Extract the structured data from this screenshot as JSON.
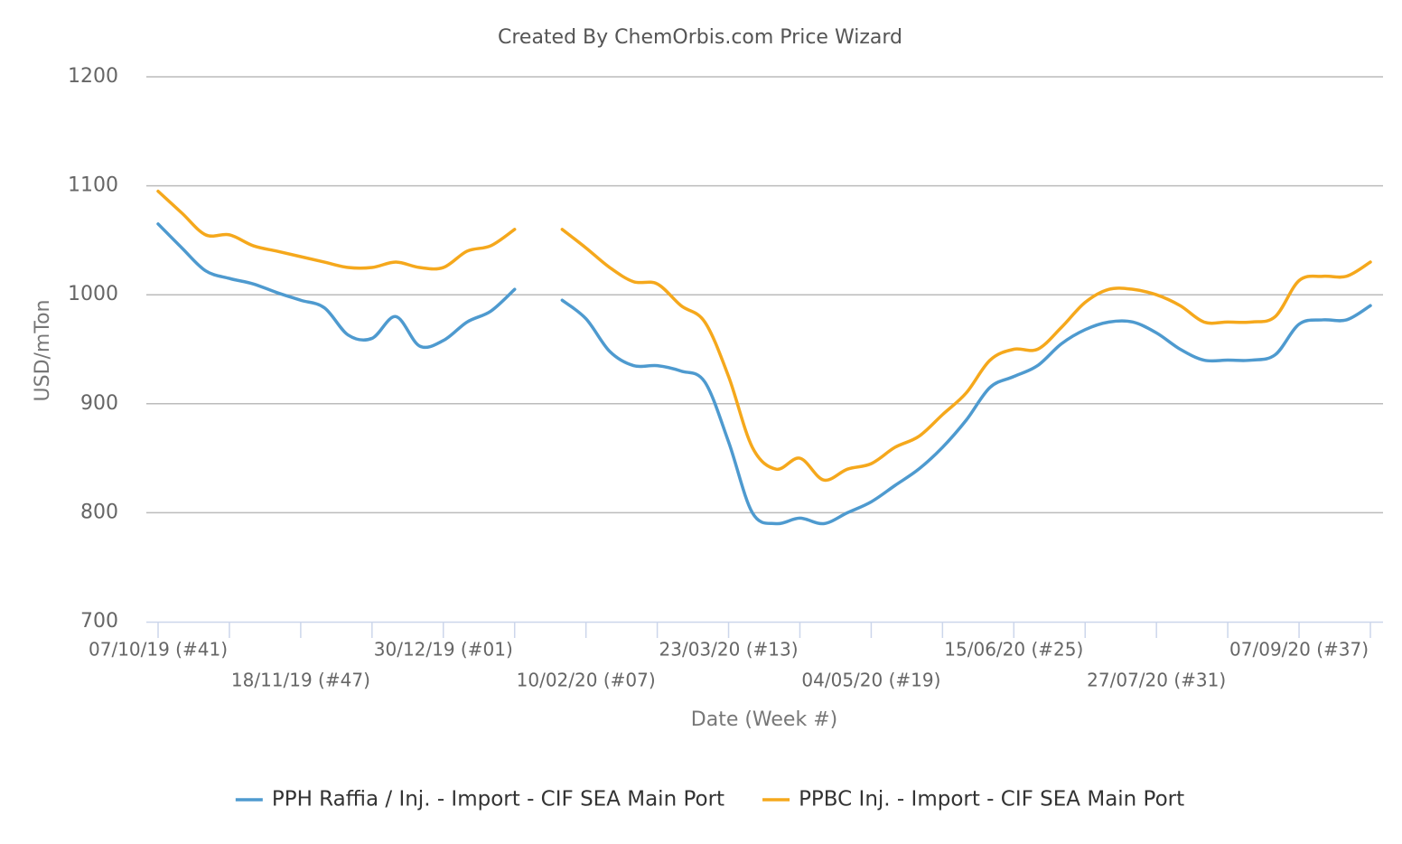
{
  "chart_data": {
    "type": "line",
    "title": "Created By ChemOrbis.com Price Wizard",
    "x_label": "Date (Week #)",
    "y_label": "USD/mTon",
    "categories": [
      "07/10/19 (#41)",
      null,
      null,
      null,
      null,
      null,
      "18/11/19 (#47)",
      null,
      null,
      null,
      null,
      null,
      "30/12/19 (#01)",
      null,
      null,
      null,
      null,
      null,
      "10/02/20 (#07)",
      null,
      null,
      null,
      null,
      null,
      "23/03/20 (#13)",
      null,
      null,
      null,
      null,
      null,
      "04/05/20 (#19)",
      null,
      null,
      null,
      null,
      null,
      "15/06/20 (#25)",
      null,
      null,
      null,
      null,
      null,
      "27/07/20 (#31)",
      null,
      null,
      null,
      null,
      null,
      "07/09/20 (#37)",
      null,
      null,
      null
    ],
    "series": [
      {
        "name": "PPH Raffia / Inj. - Import - CIF SEA Main Port",
        "color": "#4e9acf",
        "values": [
          1065,
          1043,
          1022,
          1015,
          1010,
          1002,
          995,
          988,
          963,
          960,
          980,
          953,
          958,
          975,
          985,
          1005,
          null,
          995,
          978,
          948,
          935,
          935,
          930,
          920,
          865,
          800,
          790,
          795,
          790,
          800,
          810,
          825,
          840,
          860,
          885,
          915,
          925,
          935,
          955,
          968,
          975,
          975,
          965,
          950,
          940,
          940,
          940,
          945,
          973,
          977,
          977,
          990
        ]
      },
      {
        "name": "PPBC Inj. - Import - CIF SEA Main Port",
        "color": "#f5a81c",
        "values": [
          1095,
          1075,
          1055,
          1055,
          1045,
          1040,
          1035,
          1030,
          1025,
          1025,
          1030,
          1025,
          1025,
          1040,
          1045,
          1060,
          null,
          1060,
          1043,
          1025,
          1012,
          1010,
          990,
          975,
          925,
          860,
          840,
          850,
          830,
          840,
          845,
          860,
          870,
          890,
          910,
          940,
          950,
          950,
          970,
          993,
          1005,
          1005,
          1000,
          990,
          975,
          975,
          975,
          980,
          1013,
          1017,
          1017,
          1030
        ]
      }
    ],
    "ylim": [
      700,
      1200
    ],
    "yticks": [
      700,
      800,
      900,
      1000,
      1100,
      1200
    ],
    "grid": true,
    "legend": "bottom"
  }
}
